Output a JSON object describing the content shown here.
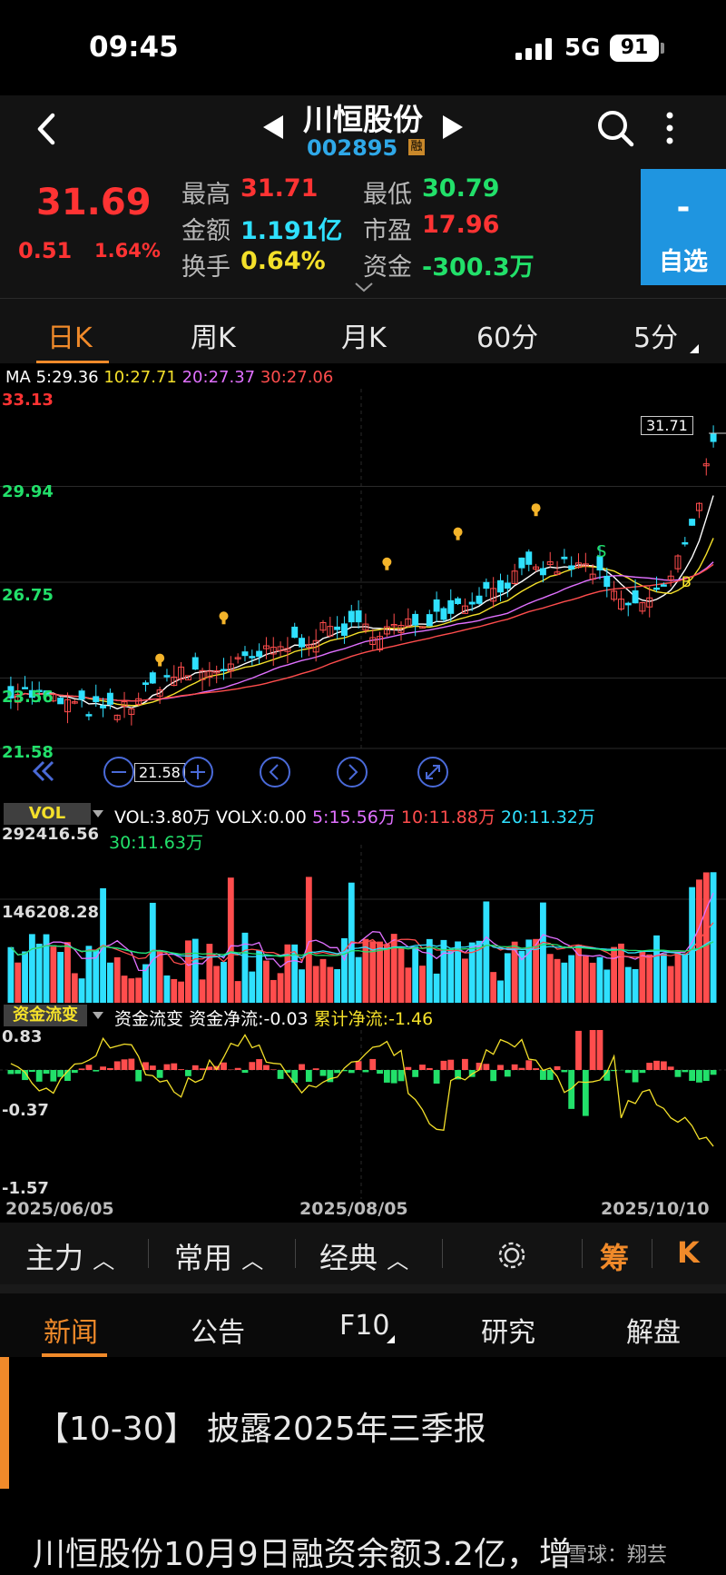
{
  "status_bar": {
    "time": "09:45",
    "network": "5G",
    "battery": "91"
  },
  "header": {
    "title": "川恒股份",
    "code": "002895",
    "margin_badge": "融"
  },
  "quote": {
    "price": "31.69",
    "change": "0.51",
    "change_pct": "1.64%",
    "high_label": "最高",
    "high": "31.71",
    "low_label": "最低",
    "low": "30.79",
    "amount_label": "金额",
    "amount": "1.191亿",
    "pe_label": "市盈",
    "pe": "17.96",
    "turnover_label": "换手",
    "turnover": "0.64%",
    "fund_label": "资金",
    "fund": "-300.3万",
    "watch_symbol": "-",
    "watch_label": "自选"
  },
  "period_tabs": [
    "日K",
    "周K",
    "月K",
    "60分",
    "5分"
  ],
  "ma_legend": {
    "prefix": "MA ",
    "ma5": "5:29.36",
    "ma10": "10:27.71",
    "ma20": "20:27.37",
    "ma30": "30:27.06"
  },
  "price_axis": [
    "33.13",
    "29.94",
    "26.75",
    "23.56",
    "21.58"
  ],
  "markers": {
    "high_tag": "31.71",
    "low_tag": "21.58",
    "sell": "S",
    "buy": "B"
  },
  "volume": {
    "badge": "VOL",
    "legend": {
      "vol": "VOL:3.80万",
      "volx": "VOLX:0.00",
      "ma5": "5:15.56万",
      "ma10": "10:11.88万",
      "ma20": "20:11.32万",
      "ma30": "30:11.63万"
    },
    "axis": [
      "292416.56",
      "146208.28"
    ]
  },
  "fund_flow": {
    "badge": "资金流变",
    "legend": {
      "name": "资金流变",
      "net": "资金净流:-0.03",
      "cum": "累计净流:-1.46"
    },
    "axis": [
      "0.83",
      "-0.37",
      "-1.57"
    ]
  },
  "dates": [
    "2025/06/05",
    "2025/08/05",
    "2025/10/10"
  ],
  "indicator_bar": {
    "main": "主力",
    "common": "常用",
    "classic": "经典",
    "chips": "筹",
    "k": "K"
  },
  "news_tabs": [
    "新闻",
    "公告",
    "F10",
    "研究",
    "解盘"
  ],
  "news": [
    "【10-30】 披露2025年三季报",
    "川恒股份10月9日融资余额3.2亿，增"
  ],
  "watermark": "雪球：翔芸",
  "chart_data": {
    "type": "candlestick",
    "title": "",
    "x_range": [
      "2025/06/05",
      "2025/10/30"
    ],
    "ylim": [
      21.58,
      33.13
    ],
    "last_close": 31.69,
    "period_high": 31.71,
    "period_low": 21.58,
    "ma": {
      "ma5": 29.36,
      "ma10": 27.71,
      "ma20": 27.37,
      "ma30": 27.06
    },
    "volume_max": 292416.56
  },
  "colors": {
    "up": "#ff4d4d",
    "down": "#2fe0ff",
    "accent": "#f08a2a",
    "ma5": "#ffffff",
    "ma10": "#f4e02a",
    "ma20": "#e070ff",
    "ma30": "#ff4d4d"
  }
}
